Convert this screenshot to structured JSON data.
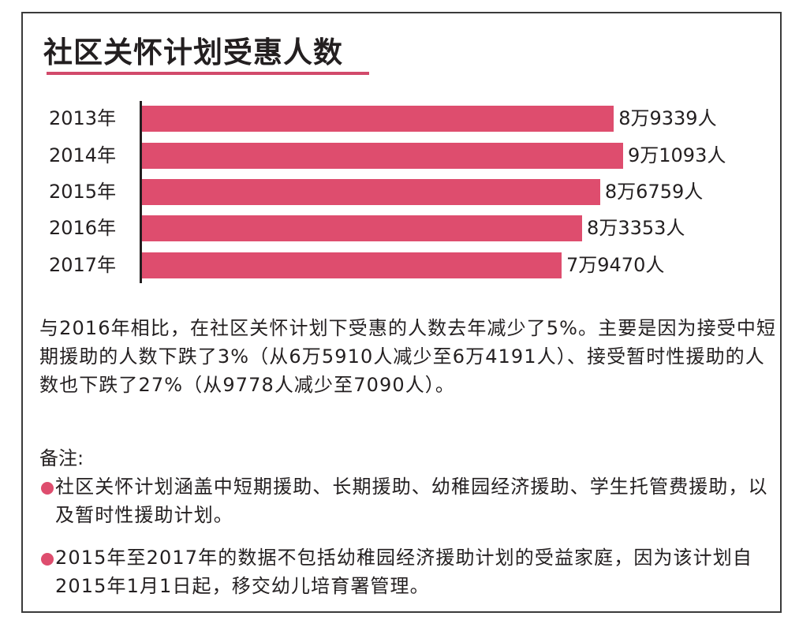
{
  "title": "社区关怀计划受惠人数",
  "colors": {
    "bar": "#de4d6e",
    "accent_rule": "#d24a6b",
    "text": "#231f20",
    "border": "#3a3a3a"
  },
  "chart_data": {
    "type": "bar",
    "orientation": "horizontal",
    "title": "社区关怀计划受惠人数",
    "categories": [
      "2013年",
      "2014年",
      "2015年",
      "2016年",
      "2017年"
    ],
    "values": [
      89339,
      91093,
      86759,
      83353,
      79470
    ],
    "value_labels": [
      "8万9339人",
      "9万1093人",
      "8万6759人",
      "8万3353人",
      "7万9470人"
    ],
    "xlabel": "",
    "ylabel": "",
    "unit": "人",
    "grid": false,
    "legend": null
  },
  "chart": {
    "rows": [
      {
        "label": "2013年",
        "value_label": "8万9339人"
      },
      {
        "label": "2014年",
        "value_label": "9万1093人"
      },
      {
        "label": "2015年",
        "value_label": "8万6759人"
      },
      {
        "label": "2016年",
        "value_label": "8万3353人"
      },
      {
        "label": "2017年",
        "value_label": "7万9470人"
      }
    ]
  },
  "paragraph": "与2016年相比，在社区关怀计划下受惠的人数去年减少了5%。主要是因为接受中短期援助的人数下跌了3%（从6万5910人减少至6万4191人）、接受暂时性援助的人数也下跌了27%（从9778人减少至7090人）。",
  "notes": {
    "heading": "备注:",
    "items": [
      "社区关怀计划涵盖中短期援助、长期援助、幼稚园经济援助、学生托管费援助，以及暂时性援助计划。",
      "2015年至2017年的数据不包括幼稚园经济援助计划的受益家庭，因为该计划自2015年1月1日起，移交幼儿培育署管理。"
    ]
  }
}
